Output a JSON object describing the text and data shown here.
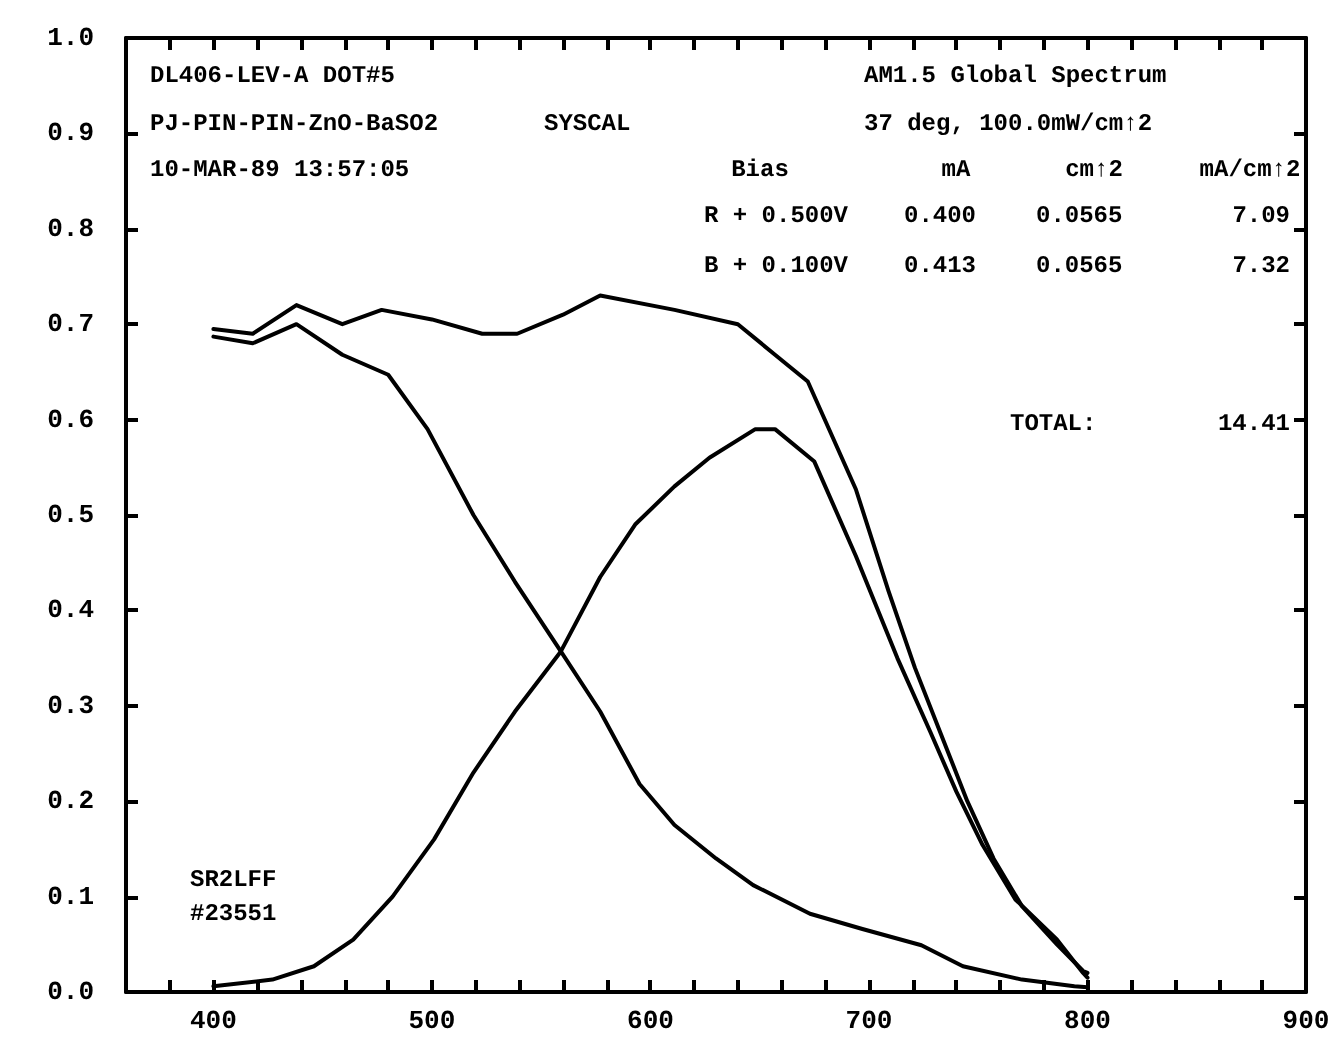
{
  "chart_data": {
    "type": "line",
    "annotations": [
      "DL406-LEV-A DOT#5",
      "PJ-PIN-PIN-ZnO-BaSO2",
      "SYSCAL",
      "10-MAR-89 13:57:05",
      "AM1.5 Global Spectrum",
      "37 deg, 100.0mW/cm↑2",
      "Bias",
      "mA",
      "cm↑2",
      "mA/cm↑2",
      "R + 0.500V",
      "0.400",
      "0.0565",
      "7.09",
      "B + 0.100V",
      "0.413",
      "0.0565",
      "7.32",
      "TOTAL:",
      "14.41",
      "SR2LFF",
      "#23551"
    ],
    "xlim": [
      360,
      900
    ],
    "xticks": [
      {
        "value": 360,
        "label": null
      },
      {
        "value": 380,
        "label": null
      },
      400,
      {
        "value": 420,
        "label": null
      },
      {
        "value": 440,
        "label": null
      },
      {
        "value": 460,
        "label": null
      },
      {
        "value": 480,
        "label": null
      },
      500,
      {
        "value": 520,
        "label": null
      },
      {
        "value": 540,
        "label": null
      },
      {
        "value": 560,
        "label": null
      },
      {
        "value": 580,
        "label": null
      },
      600,
      {
        "value": 620,
        "label": null
      },
      {
        "value": 640,
        "label": null
      },
      {
        "value": 660,
        "label": null
      },
      {
        "value": 680,
        "label": null
      },
      700,
      {
        "value": 720,
        "label": null
      },
      {
        "value": 740,
        "label": null
      },
      {
        "value": 760,
        "label": null
      },
      {
        "value": 780,
        "label": null
      },
      800,
      {
        "value": 820,
        "label": null
      },
      {
        "value": 840,
        "label": null
      },
      {
        "value": 860,
        "label": null
      },
      {
        "value": 880,
        "label": null
      },
      900
    ],
    "ylim": [
      0,
      1
    ],
    "yticks": [
      {
        "value": 0,
        "label": "0.0"
      },
      0.1,
      0.2,
      0.3,
      0.4,
      0.5,
      0.6,
      0.7,
      0.8,
      0.9,
      {
        "value": 1,
        "label": "1.0"
      }
    ],
    "grid": false,
    "marker": "none",
    "line_style": "solid",
    "series": [
      {
        "color": "#000000",
        "x": [
          400,
          418,
          438,
          459,
          477,
          500,
          523,
          539,
          560,
          577,
          611,
          640,
          657,
          672,
          694,
          709,
          721,
          733,
          745,
          757,
          770,
          786,
          798,
          800
        ],
        "values": [
          0.695,
          0.69,
          0.72,
          0.7,
          0.715,
          0.705,
          0.69,
          0.69,
          0.71,
          0.73,
          0.715,
          0.7,
          0.668,
          0.64,
          0.527,
          0.42,
          0.34,
          0.27,
          0.2,
          0.14,
          0.09,
          0.05,
          0.022,
          0.02
        ]
      },
      {
        "color": "#000000",
        "x": [
          400,
          427,
          446,
          464,
          482,
          501,
          519,
          538,
          559,
          577,
          593,
          611,
          627,
          648,
          657,
          675,
          694,
          713,
          728,
          740,
          752,
          767,
          786,
          798,
          800
        ],
        "values": [
          0.006,
          0.013,
          0.027,
          0.055,
          0.1,
          0.16,
          0.23,
          0.294,
          0.357,
          0.435,
          0.49,
          0.53,
          0.56,
          0.59,
          0.59,
          0.556,
          0.457,
          0.35,
          0.273,
          0.21,
          0.154,
          0.097,
          0.055,
          0.02,
          0.015
        ]
      },
      {
        "color": "#000000",
        "x": [
          400,
          418,
          438,
          459,
          480,
          498,
          519,
          538,
          559,
          577,
          595,
          611,
          630,
          647,
          673,
          697,
          724,
          743,
          770,
          794,
          800
        ],
        "values": [
          0.687,
          0.68,
          0.7,
          0.668,
          0.647,
          0.59,
          0.5,
          0.43,
          0.357,
          0.294,
          0.218,
          0.175,
          0.14,
          0.112,
          0.082,
          0.066,
          0.049,
          0.027,
          0.013,
          0.006,
          0.005
        ]
      }
    ]
  }
}
